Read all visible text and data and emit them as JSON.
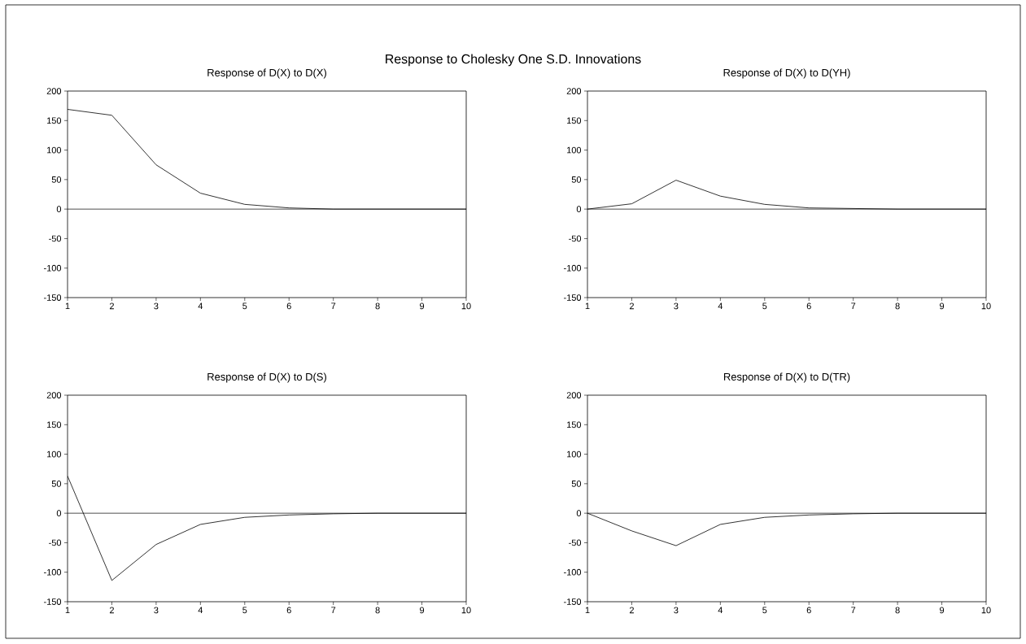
{
  "chart_data": [
    {
      "type": "line",
      "title": "Response of D(X) to D(X)",
      "annotations": [
        "Response to Cholesky One S.D. Innovations"
      ],
      "x": [
        1,
        2,
        3,
        4,
        5,
        6,
        7,
        8,
        9,
        10
      ],
      "values": [
        169,
        159,
        75,
        27,
        8,
        2,
        0,
        0,
        0,
        0
      ],
      "color": "#000000",
      "xlim": [
        1,
        10
      ],
      "xticks": [
        1,
        2,
        3,
        4,
        5,
        6,
        7,
        8,
        9,
        10
      ],
      "ylim": [
        -150,
        200
      ],
      "yticks": [
        -150,
        -100,
        -50,
        0,
        50,
        100,
        150,
        200
      ],
      "ref_lines": [
        {
          "axis": "y",
          "value": 0,
          "color": "#000000"
        }
      ]
    },
    {
      "type": "line",
      "title": "Response of D(X) to D(YH)",
      "x": [
        1,
        2,
        3,
        4,
        5,
        6,
        7,
        8,
        9,
        10
      ],
      "values": [
        0,
        9,
        49,
        22,
        8,
        2,
        1,
        0,
        0,
        0
      ],
      "color": "#000000",
      "xlim": [
        1,
        10
      ],
      "xticks": [
        1,
        2,
        3,
        4,
        5,
        6,
        7,
        8,
        9,
        10
      ],
      "ylim": [
        -150,
        200
      ],
      "yticks": [
        -150,
        -100,
        -50,
        0,
        50,
        100,
        150,
        200
      ],
      "ref_lines": [
        {
          "axis": "y",
          "value": 0,
          "color": "#000000"
        }
      ]
    },
    {
      "type": "line",
      "title": "Response of D(X) to D(S)",
      "x": [
        1,
        2,
        3,
        4,
        5,
        6,
        7,
        8,
        9,
        10
      ],
      "values": [
        63,
        -114,
        -53,
        -19,
        -7,
        -3,
        -1,
        0,
        0,
        0
      ],
      "color": "#000000",
      "xlim": [
        1,
        10
      ],
      "xticks": [
        1,
        2,
        3,
        4,
        5,
        6,
        7,
        8,
        9,
        10
      ],
      "ylim": [
        -150,
        200
      ],
      "yticks": [
        -150,
        -100,
        -50,
        0,
        50,
        100,
        150,
        200
      ],
      "ref_lines": [
        {
          "axis": "y",
          "value": 0,
          "color": "#000000"
        }
      ]
    },
    {
      "type": "line",
      "title": "Response of D(X) to D(TR)",
      "x": [
        1,
        2,
        3,
        4,
        5,
        6,
        7,
        8,
        9,
        10
      ],
      "values": [
        0,
        -30,
        -55,
        -19,
        -7,
        -3,
        -1,
        0,
        0,
        0
      ],
      "color": "#000000",
      "xlim": [
        1,
        10
      ],
      "xticks": [
        1,
        2,
        3,
        4,
        5,
        6,
        7,
        8,
        9,
        10
      ],
      "ylim": [
        -150,
        200
      ],
      "yticks": [
        -150,
        -100,
        -50,
        0,
        50,
        100,
        150,
        200
      ],
      "ref_lines": [
        {
          "axis": "y",
          "value": 0,
          "color": "#000000"
        }
      ]
    }
  ]
}
